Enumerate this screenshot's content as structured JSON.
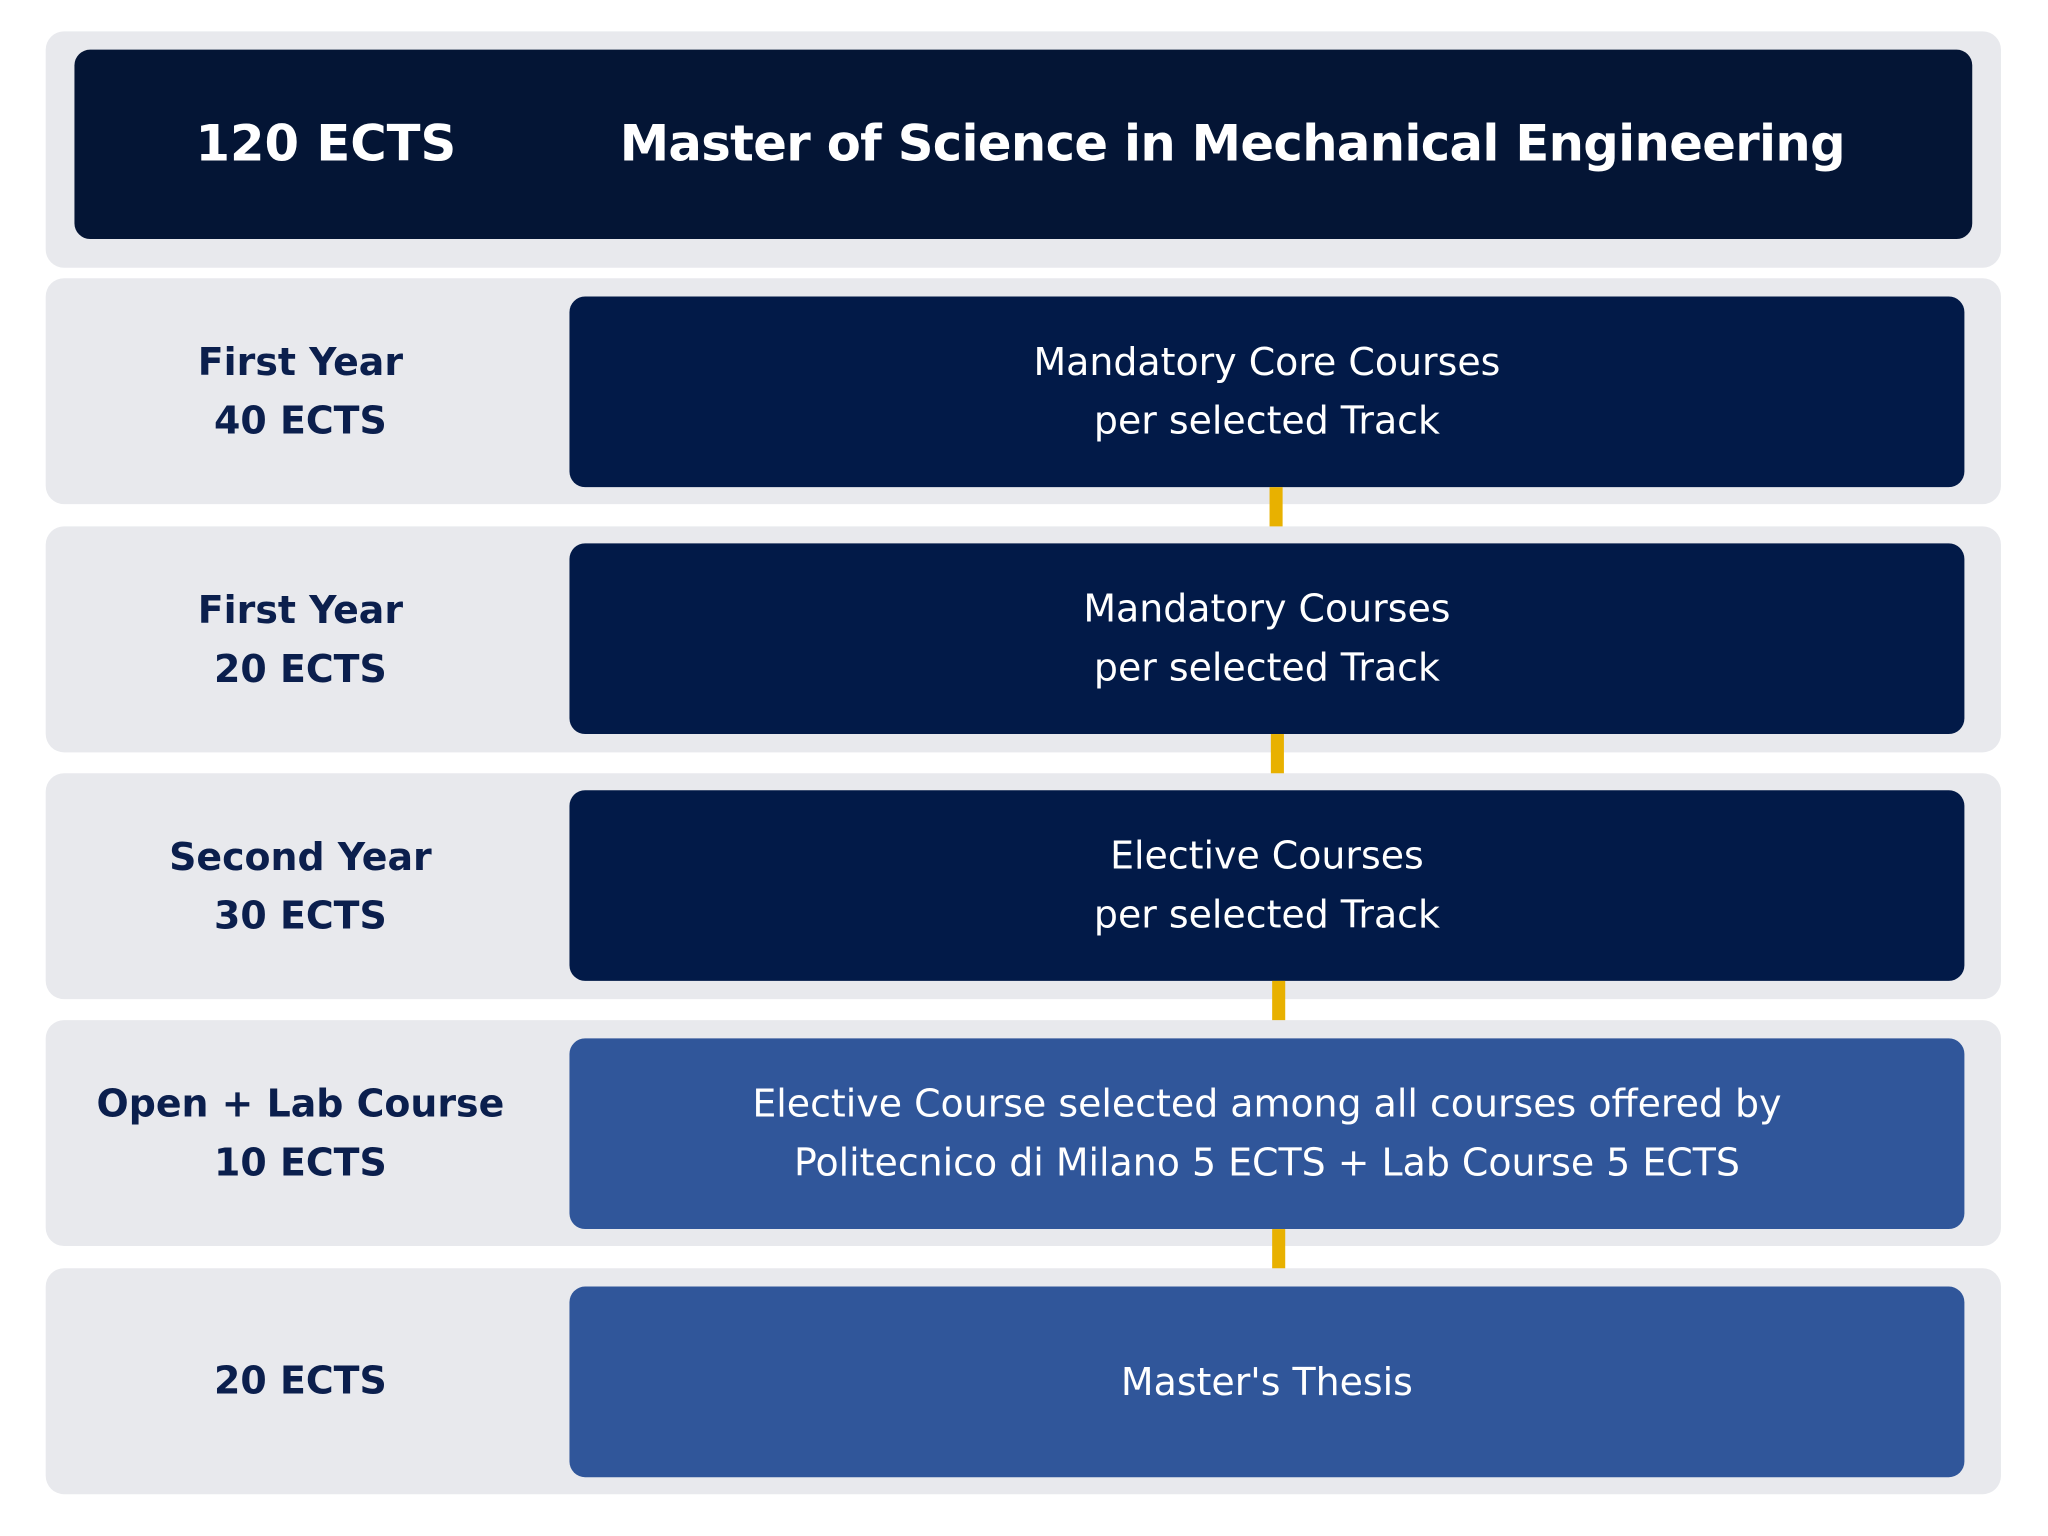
{
  "header": {
    "ects": "120 ECTS",
    "title": "Master of Science in Mechanical Engineering"
  },
  "colors": {
    "panel": "#e8e9ed",
    "header": "#041535",
    "dark_box": "#021a48",
    "light_box": "#30569a",
    "connector": "#e8b100",
    "label_text": "#0b1f4d"
  },
  "rows": [
    {
      "label_line1": "First Year",
      "label_line2": "40 ECTS",
      "box_line1": "Mandatory Core Courses",
      "box_line2": "per selected Track",
      "style": "dark"
    },
    {
      "label_line1": "First Year",
      "label_line2": "20 ECTS",
      "box_line1": "Mandatory Courses",
      "box_line2": "per selected Track",
      "style": "dark"
    },
    {
      "label_line1": "Second Year",
      "label_line2": "30 ECTS",
      "box_line1": "Elective Courses",
      "box_line2": "per selected Track",
      "style": "dark"
    },
    {
      "label_line1": "Open + Lab Course",
      "label_line2": "10 ECTS",
      "box_line1": "Elective Course selected among all courses offered by",
      "box_line2": "Politecnico di Milano 5 ECTS  + Lab Course 5 ECTS",
      "style": "light"
    },
    {
      "label_line1": "",
      "label_line2": "20 ECTS",
      "box_line1": "Master's Thesis",
      "box_line2": "",
      "style": "light"
    }
  ]
}
